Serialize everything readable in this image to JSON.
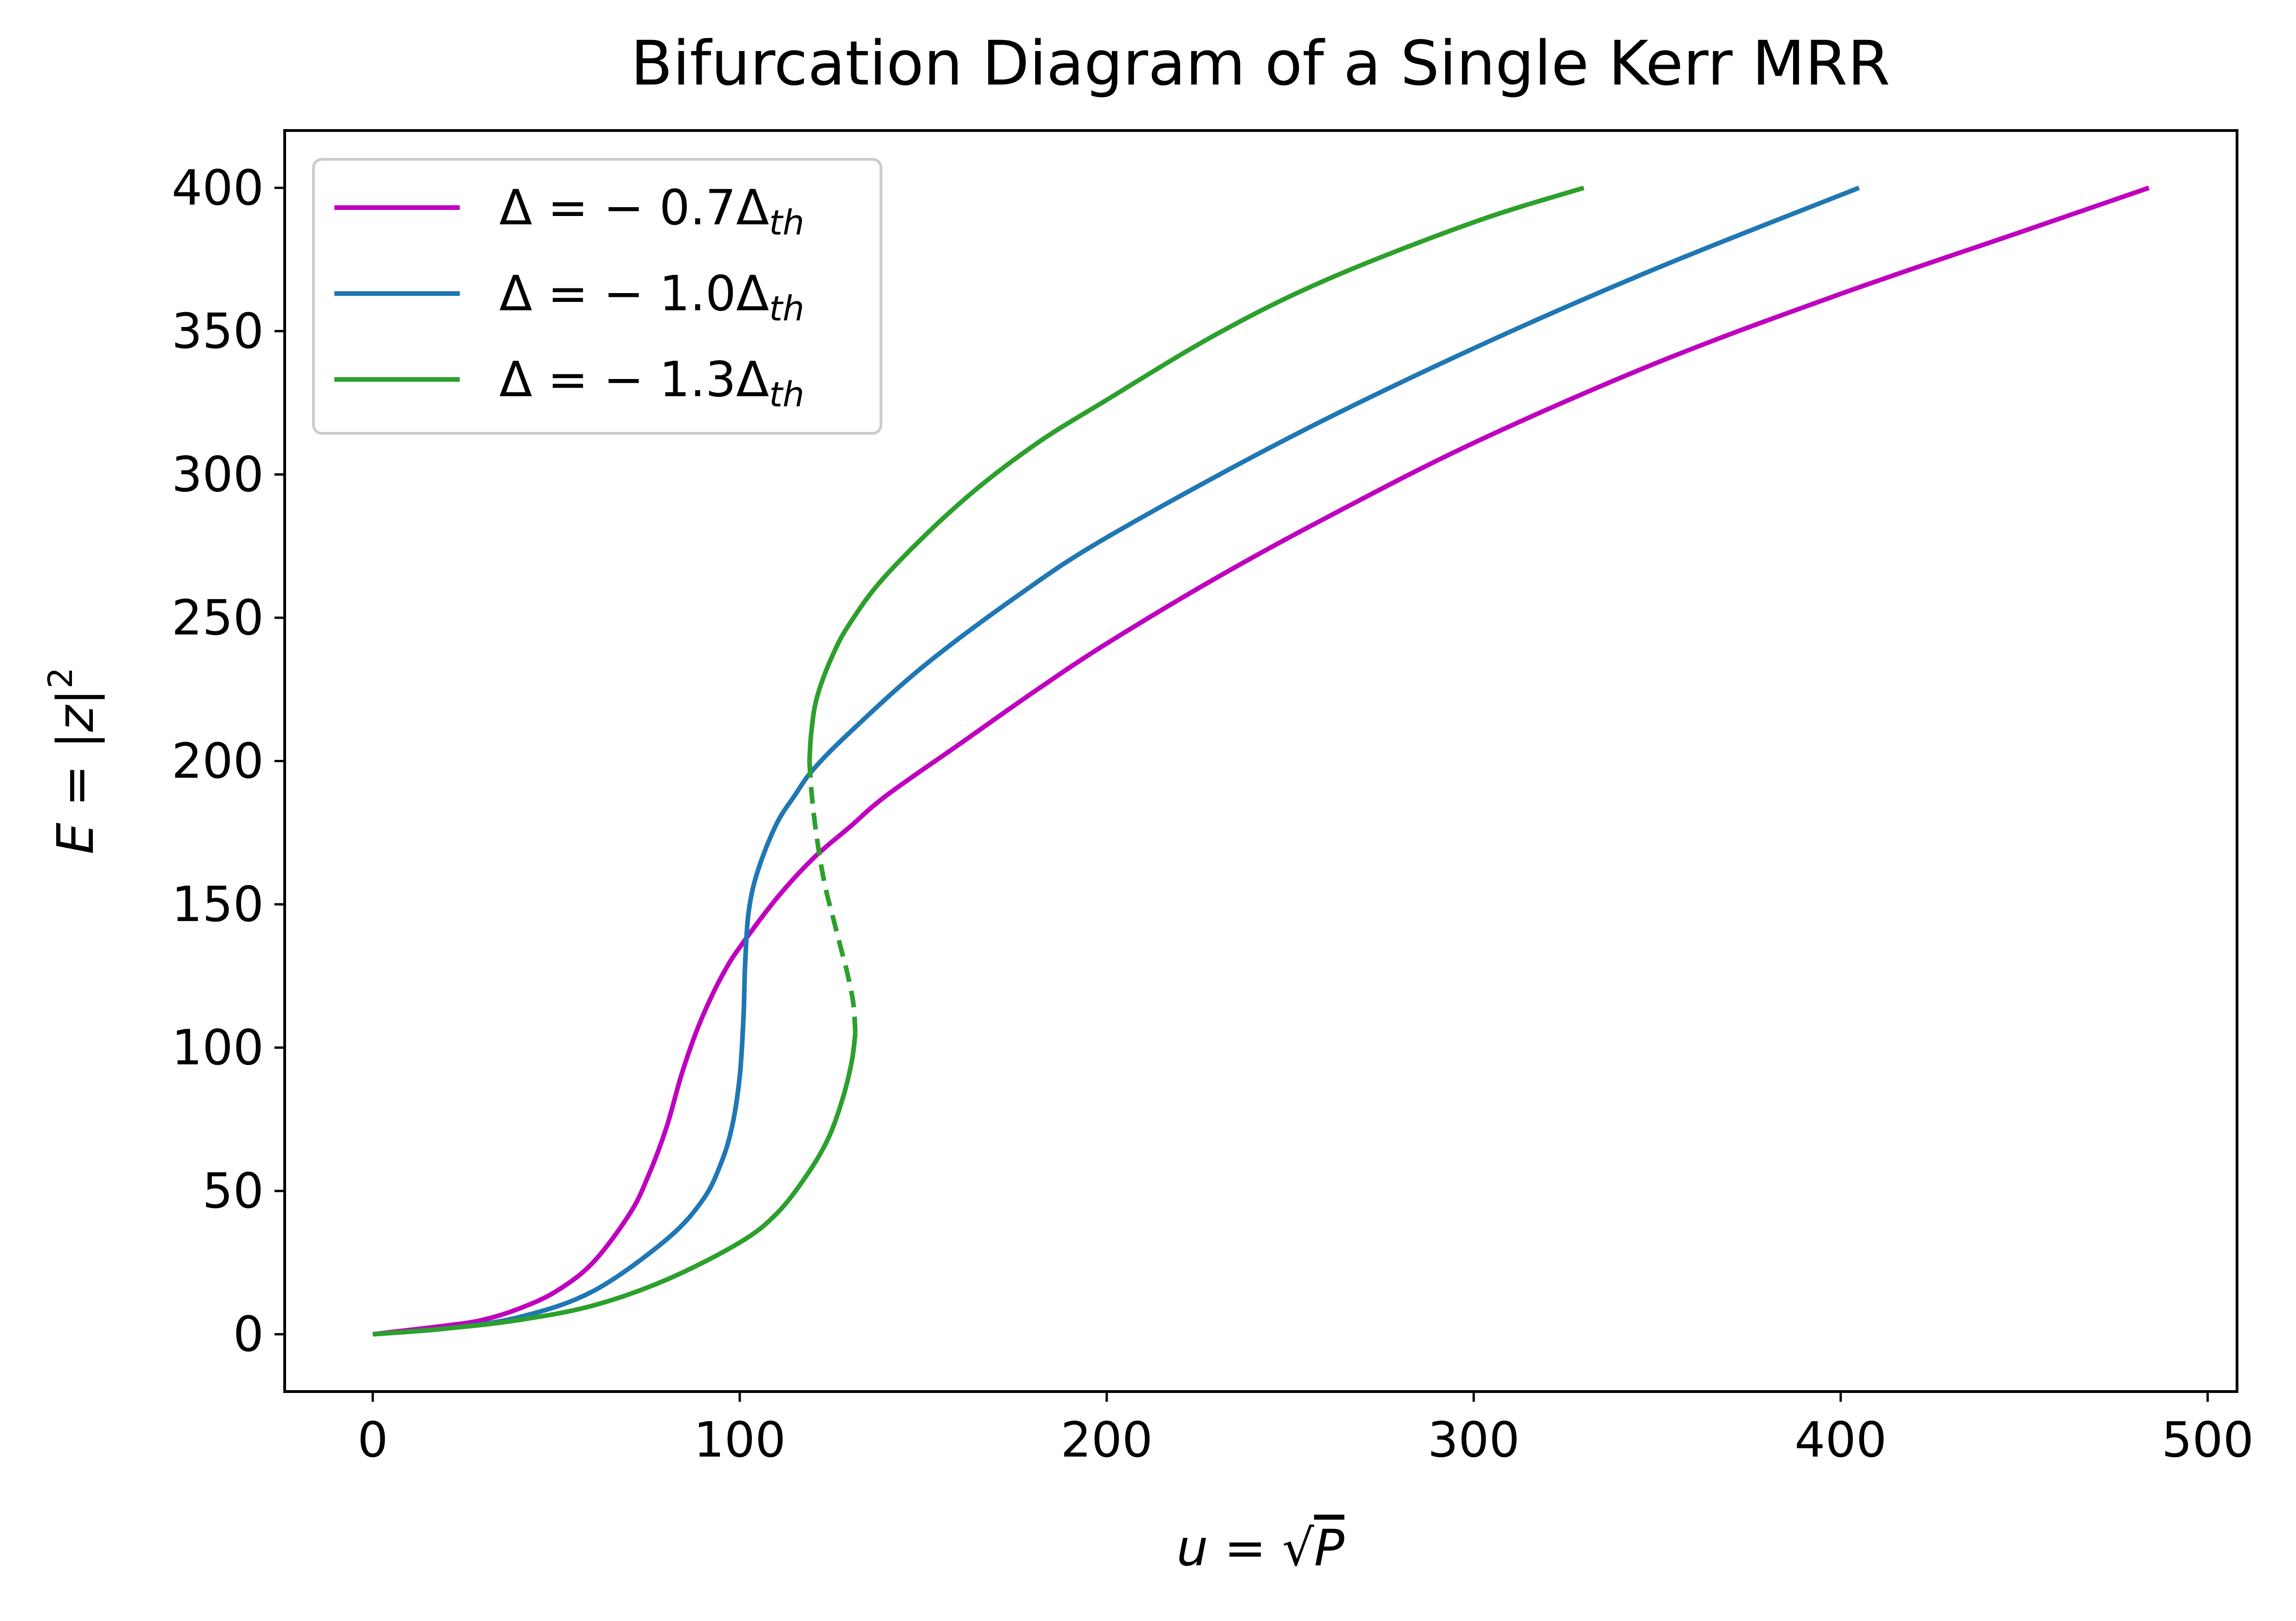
{
  "chart_data": {
    "type": "line",
    "title": "Bifurcation Diagram of a Single Kerr MRR",
    "xlabel": {
      "main": "u = ",
      "radical": "√",
      "radicand": "P"
    },
    "ylabel": {
      "main": "E = |z|",
      "sup": "2"
    },
    "xlim": [
      -24,
      508
    ],
    "ylim": [
      -20,
      420
    ],
    "xticks": [
      0,
      100,
      200,
      300,
      400,
      500
    ],
    "yticks": [
      0,
      50,
      100,
      150,
      200,
      250,
      300,
      350,
      400
    ],
    "xtick_labels": [
      "0",
      "100",
      "200",
      "300",
      "400",
      "500"
    ],
    "ytick_labels": [
      "0",
      "50",
      "100",
      "150",
      "200",
      "250",
      "300",
      "350",
      "400"
    ],
    "grid": false,
    "legend_position": "upper-left",
    "series": [
      {
        "name": "Δ = −0.7Δ_th",
        "legend_main": "Δ = − 0.7Δ",
        "legend_sub": "th",
        "color": "#bf00bf",
        "points": [
          [
            0,
            0
          ],
          [
            20,
            3
          ],
          [
            30,
            5
          ],
          [
            40,
            9
          ],
          [
            50,
            15
          ],
          [
            60,
            25
          ],
          [
            70,
            42
          ],
          [
            75,
            55
          ],
          [
            80,
            72
          ],
          [
            84,
            90
          ],
          [
            88,
            105
          ],
          [
            92,
            117
          ],
          [
            96,
            127
          ],
          [
            100,
            135
          ],
          [
            110,
            152
          ],
          [
            120,
            166
          ],
          [
            130,
            177
          ],
          [
            140,
            188
          ],
          [
            160,
            206
          ],
          [
            180,
            224
          ],
          [
            200,
            241
          ],
          [
            230,
            264
          ],
          [
            260,
            285
          ],
          [
            300,
            311
          ],
          [
            350,
            339
          ],
          [
            400,
            363
          ],
          [
            450,
            385
          ],
          [
            484,
            400
          ]
        ],
        "dashed": []
      },
      {
        "name": "Δ = −1.0Δ_th",
        "legend_main": "Δ = − 1.0Δ",
        "legend_sub": "th",
        "color": "#1f77b4",
        "points": [
          [
            0,
            0
          ],
          [
            20,
            2
          ],
          [
            40,
            6
          ],
          [
            60,
            15
          ],
          [
            80,
            33
          ],
          [
            90,
            47
          ],
          [
            95,
            60
          ],
          [
            98,
            73
          ],
          [
            100,
            90
          ],
          [
            101,
            110
          ],
          [
            101.5,
            130
          ],
          [
            102.5,
            148
          ],
          [
            105,
            162
          ],
          [
            110,
            178
          ],
          [
            115,
            188
          ],
          [
            120,
            197
          ],
          [
            130,
            210
          ],
          [
            150,
            233
          ],
          [
            175,
            257
          ],
          [
            200,
            278
          ],
          [
            250,
            313
          ],
          [
            300,
            344
          ],
          [
            350,
            372
          ],
          [
            405,
            400
          ]
        ],
        "dashed": []
      },
      {
        "name": "Δ = −1.3Δ_th",
        "legend_main": "Δ = − 1.3Δ",
        "legend_sub": "th",
        "color": "#2ca02c",
        "points": [
          [
            0,
            0
          ],
          [
            20,
            2
          ],
          [
            40,
            5
          ],
          [
            60,
            10
          ],
          [
            80,
            19
          ],
          [
            100,
            32
          ],
          [
            110,
            42
          ],
          [
            118,
            55
          ],
          [
            124,
            68
          ],
          [
            128,
            82
          ],
          [
            130.5,
            95
          ],
          [
            131.5,
            105
          ],
          [
            131,
            115
          ],
          [
            129.5,
            125
          ],
          [
            127.5,
            135
          ],
          [
            125.5,
            145
          ],
          [
            123.5,
            155
          ],
          [
            122,
            165
          ],
          [
            120.5,
            178
          ],
          [
            119.5,
            190
          ],
          [
            119,
            200
          ],
          [
            119.5,
            210
          ],
          [
            121,
            222
          ],
          [
            125,
            236
          ],
          [
            130,
            248
          ],
          [
            140,
            265
          ],
          [
            160,
            290
          ],
          [
            180,
            310
          ],
          [
            200,
            326
          ],
          [
            230,
            349
          ],
          [
            260,
            368
          ],
          [
            300,
            388
          ],
          [
            330,
            400
          ]
        ],
        "dashed": [
          [
            131.5,
            105
          ],
          [
            131,
            115
          ],
          [
            129.5,
            125
          ],
          [
            127.5,
            135
          ],
          [
            125.5,
            145
          ],
          [
            123.5,
            155
          ],
          [
            122,
            165
          ],
          [
            120.5,
            178
          ],
          [
            119.5,
            190
          ],
          [
            119,
            200
          ]
        ]
      }
    ]
  }
}
